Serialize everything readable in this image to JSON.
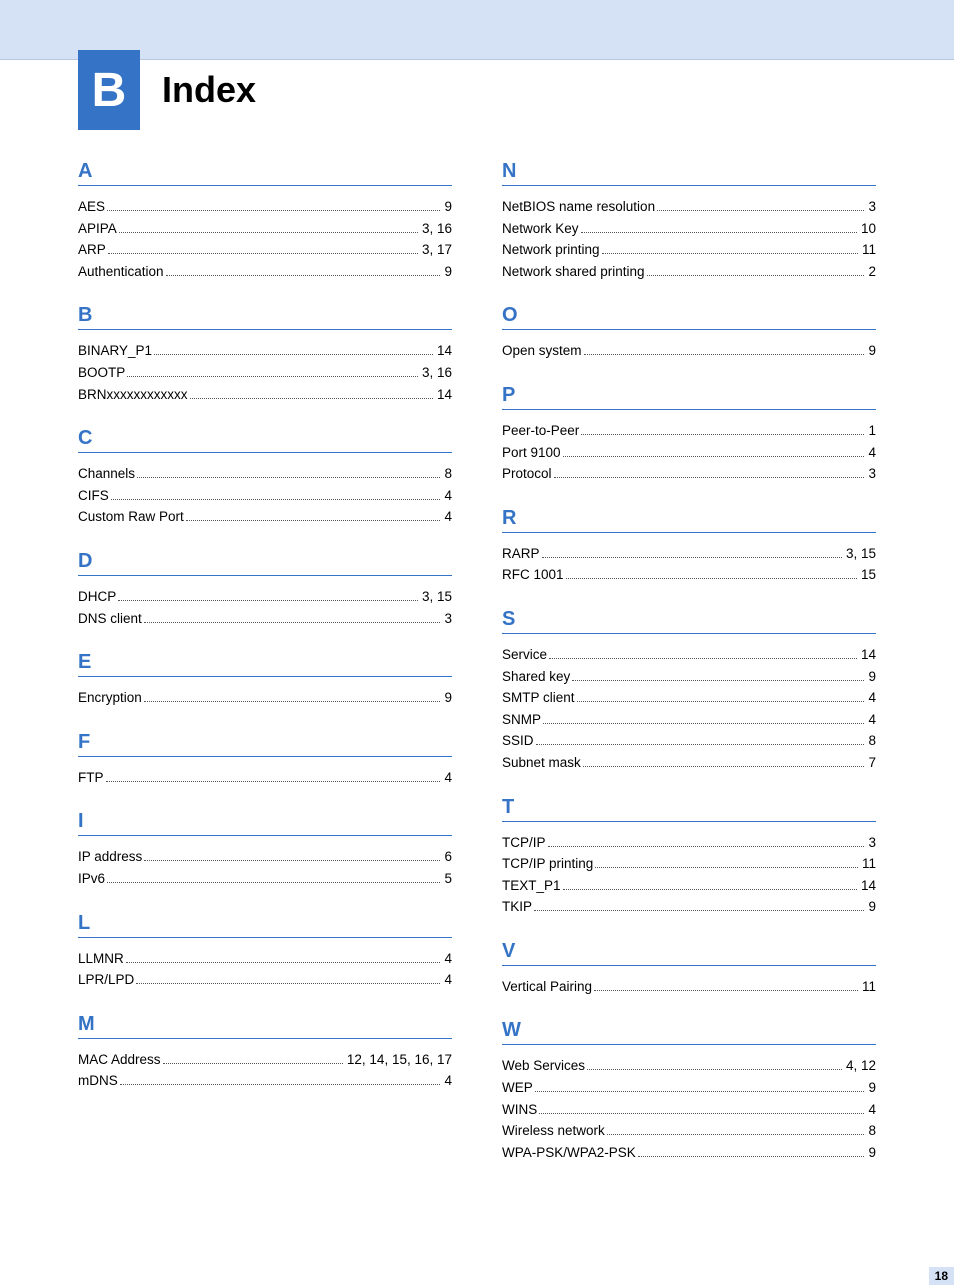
{
  "chapter_badge": "B",
  "page_title": "Index",
  "side_tab": "B",
  "page_number": "18",
  "sections_left": [
    {
      "letter": "A",
      "entries": [
        {
          "term": "AES",
          "pages": "9"
        },
        {
          "term": "APIPA",
          "pages": "3, 16"
        },
        {
          "term": "ARP",
          "pages": "3, 17"
        },
        {
          "term": "Authentication",
          "pages": "9"
        }
      ]
    },
    {
      "letter": "B",
      "entries": [
        {
          "term": "BINARY_P1",
          "pages": "14"
        },
        {
          "term": "BOOTP",
          "pages": "3, 16"
        },
        {
          "term": "BRNxxxxxxxxxxxx",
          "pages": "14"
        }
      ]
    },
    {
      "letter": "C",
      "entries": [
        {
          "term": "Channels",
          "pages": "8"
        },
        {
          "term": "CIFS",
          "pages": "4"
        },
        {
          "term": "Custom Raw Port",
          "pages": "4"
        }
      ]
    },
    {
      "letter": "D",
      "entries": [
        {
          "term": "DHCP",
          "pages": "3, 15"
        },
        {
          "term": "DNS client",
          "pages": "3"
        }
      ]
    },
    {
      "letter": "E",
      "entries": [
        {
          "term": "Encryption",
          "pages": "9"
        }
      ]
    },
    {
      "letter": "F",
      "entries": [
        {
          "term": "FTP",
          "pages": "4"
        }
      ]
    },
    {
      "letter": "I",
      "entries": [
        {
          "term": "IP address",
          "pages": "6"
        },
        {
          "term": "IPv6",
          "pages": "5"
        }
      ]
    },
    {
      "letter": "L",
      "entries": [
        {
          "term": "LLMNR",
          "pages": "4"
        },
        {
          "term": "LPR/LPD",
          "pages": "4"
        }
      ]
    },
    {
      "letter": "M",
      "entries": [
        {
          "term": "MAC Address",
          "pages": "12, 14, 15, 16, 17"
        },
        {
          "term": "mDNS",
          "pages": "4"
        }
      ]
    }
  ],
  "sections_right": [
    {
      "letter": "N",
      "entries": [
        {
          "term": "NetBIOS name resolution",
          "pages": "3"
        },
        {
          "term": "Network Key",
          "pages": "10"
        },
        {
          "term": "Network printing",
          "pages": "11"
        },
        {
          "term": "Network shared printing",
          "pages": "2"
        }
      ]
    },
    {
      "letter": "O",
      "entries": [
        {
          "term": "Open system",
          "pages": "9"
        }
      ]
    },
    {
      "letter": "P",
      "entries": [
        {
          "term": "Peer-to-Peer",
          "pages": "1"
        },
        {
          "term": "Port 9100",
          "pages": "4"
        },
        {
          "term": "Protocol",
          "pages": "3"
        }
      ]
    },
    {
      "letter": "R",
      "entries": [
        {
          "term": "RARP",
          "pages": "3, 15"
        },
        {
          "term": "RFC 1001",
          "pages": "15"
        }
      ]
    },
    {
      "letter": "S",
      "entries": [
        {
          "term": "Service",
          "pages": "14"
        },
        {
          "term": "Shared key",
          "pages": "9"
        },
        {
          "term": "SMTP client",
          "pages": "4"
        },
        {
          "term": "SNMP",
          "pages": "4"
        },
        {
          "term": "SSID",
          "pages": "8"
        },
        {
          "term": "Subnet mask",
          "pages": "7"
        }
      ]
    },
    {
      "letter": "T",
      "entries": [
        {
          "term": "TCP/IP",
          "pages": "3"
        },
        {
          "term": "TCP/IP printing",
          "pages": "11"
        },
        {
          "term": "TEXT_P1",
          "pages": "14"
        },
        {
          "term": "TKIP",
          "pages": "9"
        }
      ]
    },
    {
      "letter": "V",
      "entries": [
        {
          "term": "Vertical Pairing",
          "pages": "11"
        }
      ]
    },
    {
      "letter": "W",
      "entries": [
        {
          "term": "Web Services",
          "pages": "4, 12"
        },
        {
          "term": "WEP",
          "pages": "9"
        },
        {
          "term": "WINS",
          "pages": "4"
        },
        {
          "term": "Wireless network",
          "pages": "8"
        },
        {
          "term": "WPA-PSK/WPA2-PSK",
          "pages": "9"
        }
      ]
    }
  ]
}
